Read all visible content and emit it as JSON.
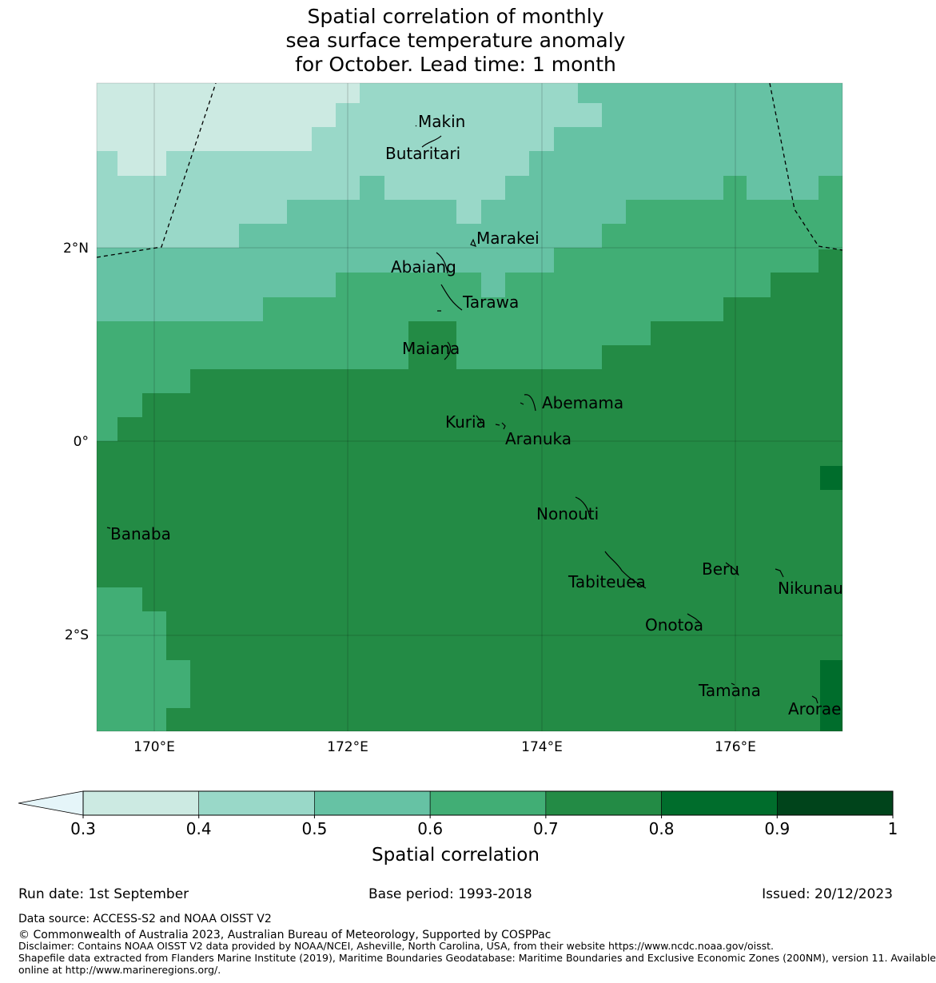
{
  "title": {
    "line1": "Spatial correlation of monthly",
    "line2": "sea surface temperature anomaly",
    "line3": "for October. Lead time: 1 month"
  },
  "map": {
    "lat_labels": [
      "2°N",
      "0°",
      "2°S"
    ],
    "lon_labels": [
      "170°E",
      "172°E",
      "174°E",
      "176°E"
    ],
    "islands": [
      "Makin",
      "Butaritari",
      "Marakei",
      "Abaiang",
      "Tarawa",
      "Maiana",
      "Abemama",
      "Kuria",
      "Aranuka",
      "Nonouti",
      "Banaba",
      "Beru",
      "Tabiteuea",
      "Nikunau",
      "Onotoa",
      "Tamana",
      "Arorae"
    ]
  },
  "colorbar": {
    "ticks": [
      "0.3",
      "0.4",
      "0.5",
      "0.6",
      "0.7",
      "0.8",
      "0.9",
      "1"
    ],
    "colors": [
      "#cceae2",
      "#99d8c8",
      "#66c2a4",
      "#41ae75",
      "#238b45",
      "#006d2c",
      "#00441b"
    ],
    "under_color": "#e5f5f9",
    "label": "Spatial correlation"
  },
  "footer": {
    "run_date": "Run date: 1st September",
    "base_period": "Base period: 1993-2018",
    "issued": "Issued: 20/12/2023",
    "data_source": "Data source: ACCESS-S2 and NOAA OISST V2",
    "copyright": "© Commonwealth of Australia 2023, Australian Bureau of Meteorology, Supported by COSPPac",
    "disclaimer": "Disclaimer: Contains NOAA OISST V2 data provided by NOAA/NCEI, Asheville, North Carolina, USA, from their website https://www.ncdc.noaa.gov/oisst.",
    "shapefile1": "Shapefile data extracted from Flanders Marine Institute (2019), Maritime Boundaries Geodatabase: Maritime Boundaries and Exclusive Economic Zones (200NM), version 11. Available",
    "shapefile2": "online at http://www.marineregions.org/."
  }
}
